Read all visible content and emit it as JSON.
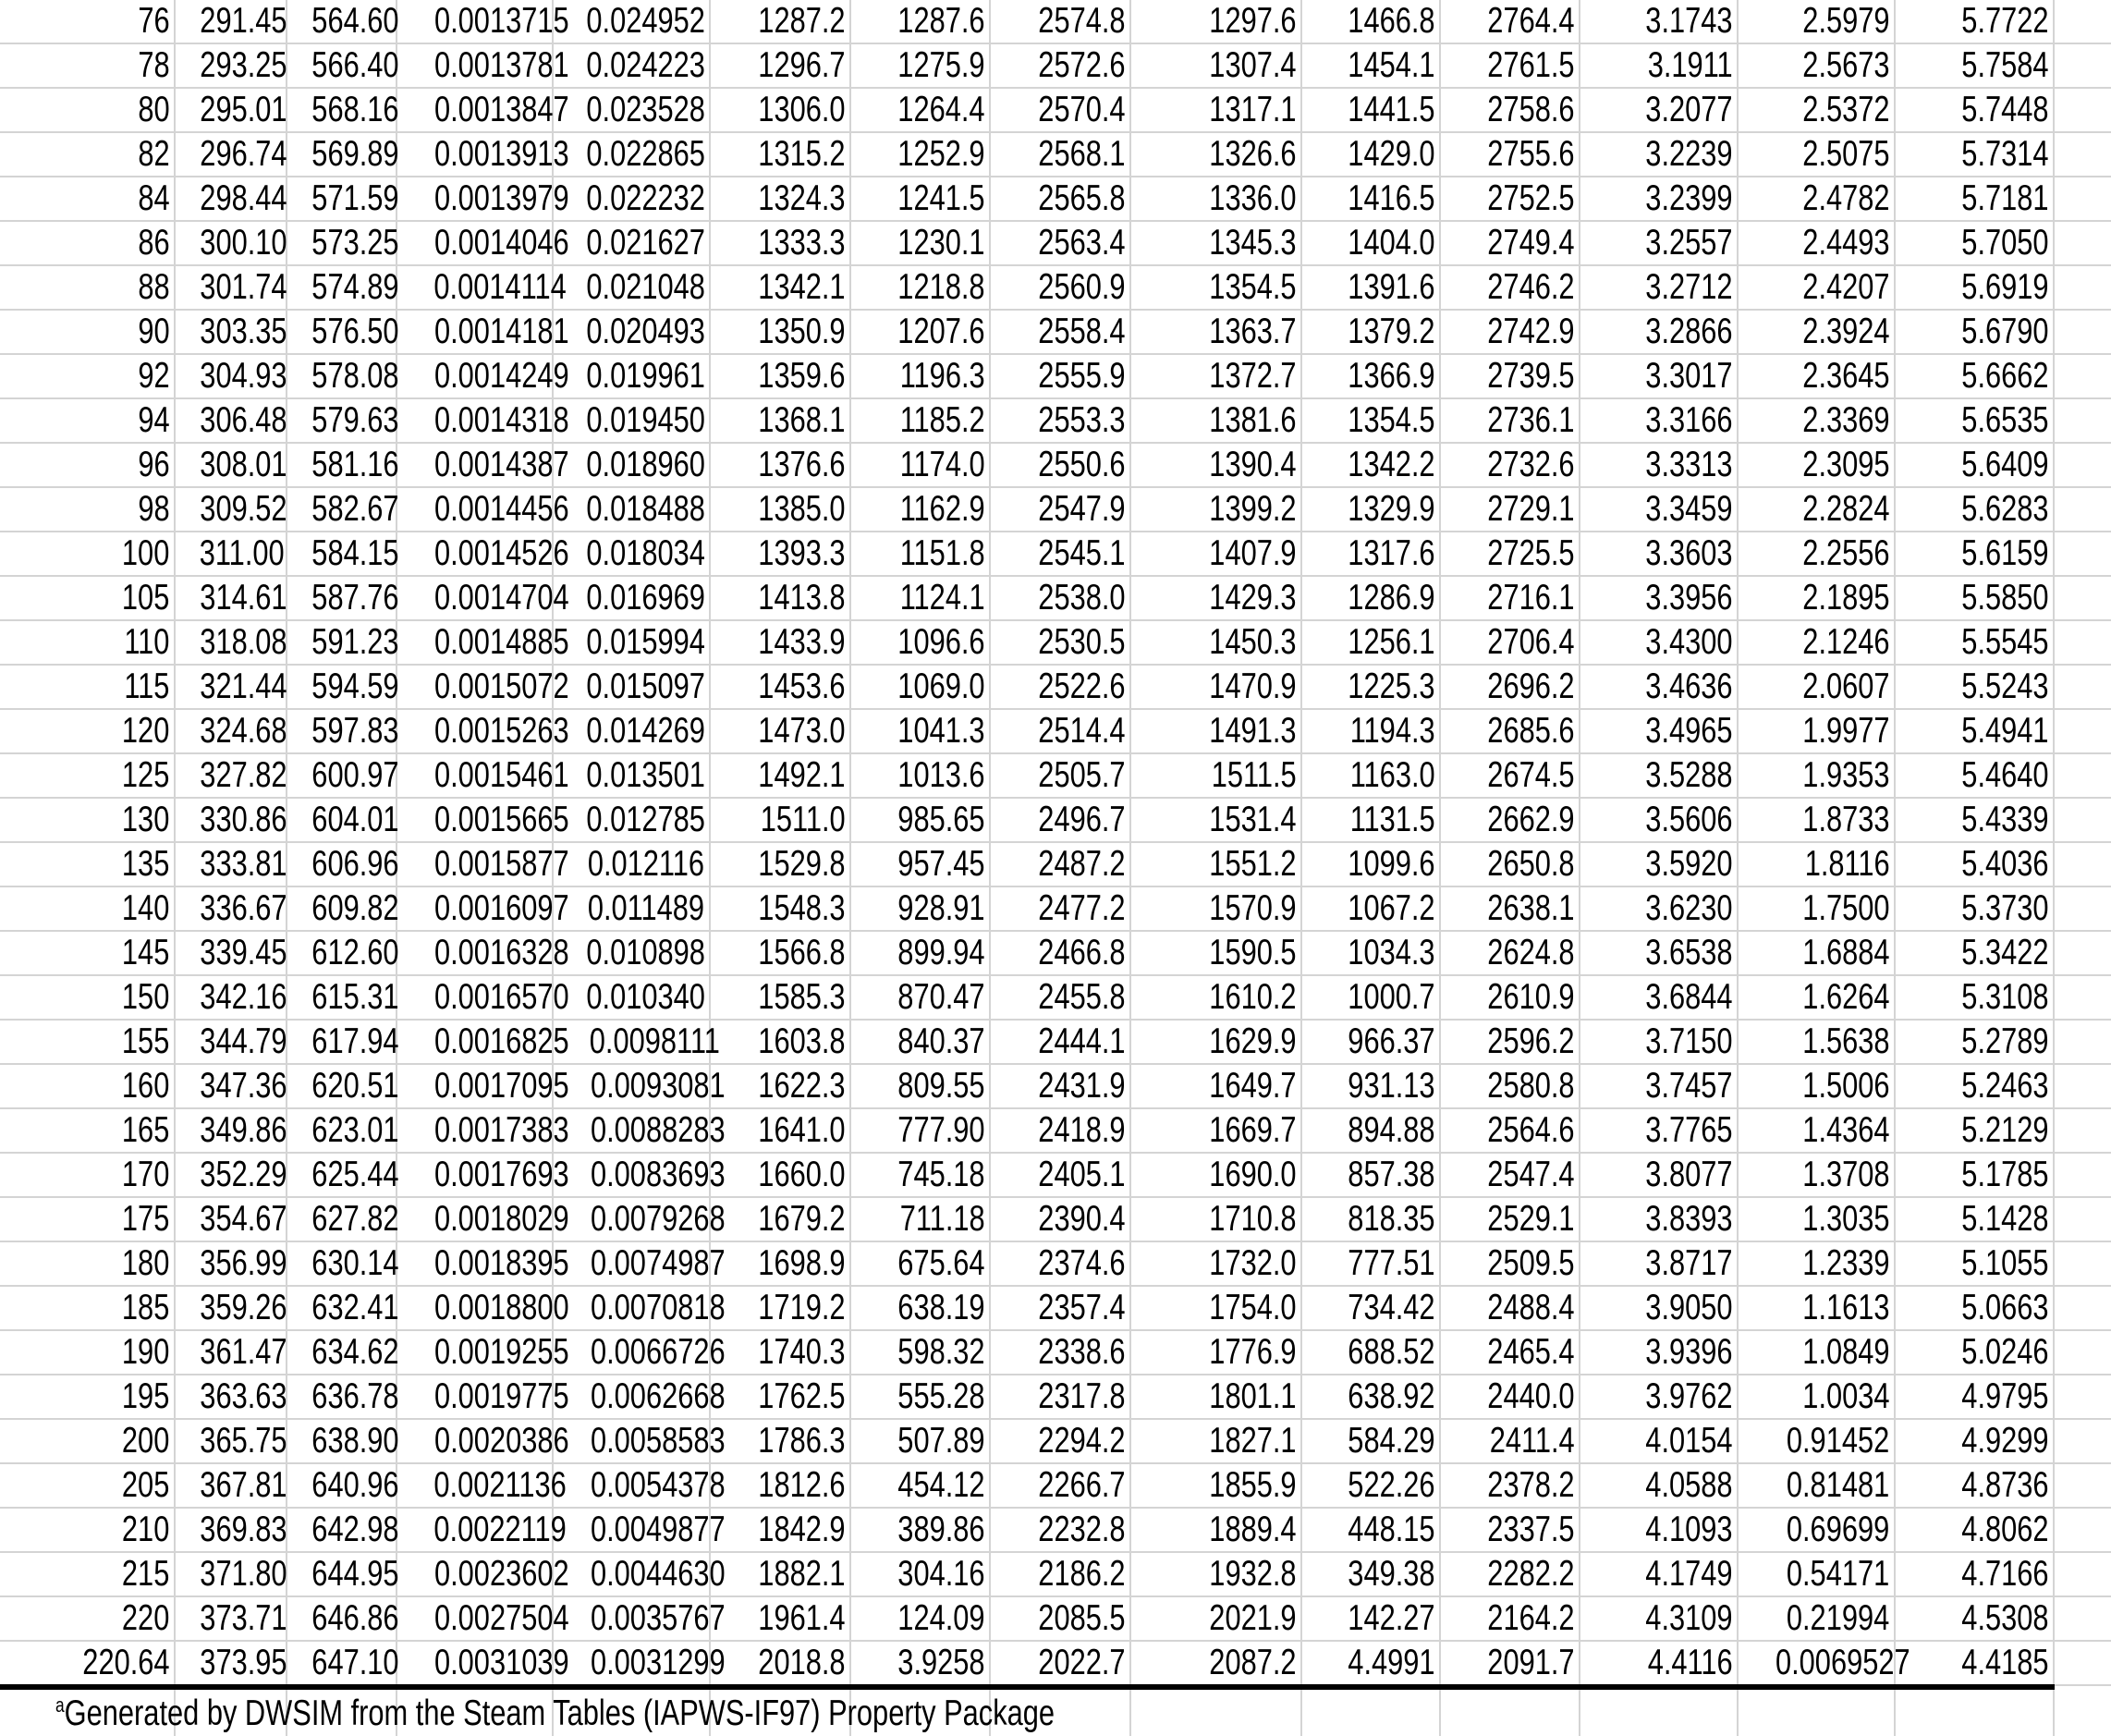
{
  "table": {
    "rows": [
      [
        "76",
        "291.45",
        "564.60",
        "0.0013715",
        "0.024952",
        "1287.2",
        "1287.6",
        "2574.8",
        "1297.6",
        "1466.8",
        "2764.4",
        "3.1743",
        "2.5979",
        "5.7722"
      ],
      [
        "78",
        "293.25",
        "566.40",
        "0.0013781",
        "0.024223",
        "1296.7",
        "1275.9",
        "2572.6",
        "1307.4",
        "1454.1",
        "2761.5",
        "3.1911",
        "2.5673",
        "5.7584"
      ],
      [
        "80",
        "295.01",
        "568.16",
        "0.0013847",
        "0.023528",
        "1306.0",
        "1264.4",
        "2570.4",
        "1317.1",
        "1441.5",
        "2758.6",
        "3.2077",
        "2.5372",
        "5.7448"
      ],
      [
        "82",
        "296.74",
        "569.89",
        "0.0013913",
        "0.022865",
        "1315.2",
        "1252.9",
        "2568.1",
        "1326.6",
        "1429.0",
        "2755.6",
        "3.2239",
        "2.5075",
        "5.7314"
      ],
      [
        "84",
        "298.44",
        "571.59",
        "0.0013979",
        "0.022232",
        "1324.3",
        "1241.5",
        "2565.8",
        "1336.0",
        "1416.5",
        "2752.5",
        "3.2399",
        "2.4782",
        "5.7181"
      ],
      [
        "86",
        "300.10",
        "573.25",
        "0.0014046",
        "0.021627",
        "1333.3",
        "1230.1",
        "2563.4",
        "1345.3",
        "1404.0",
        "2749.4",
        "3.2557",
        "2.4493",
        "5.7050"
      ],
      [
        "88",
        "301.74",
        "574.89",
        "0.0014114",
        "0.021048",
        "1342.1",
        "1218.8",
        "2560.9",
        "1354.5",
        "1391.6",
        "2746.2",
        "3.2712",
        "2.4207",
        "5.6919"
      ],
      [
        "90",
        "303.35",
        "576.50",
        "0.0014181",
        "0.020493",
        "1350.9",
        "1207.6",
        "2558.4",
        "1363.7",
        "1379.2",
        "2742.9",
        "3.2866",
        "2.3924",
        "5.6790"
      ],
      [
        "92",
        "304.93",
        "578.08",
        "0.0014249",
        "0.019961",
        "1359.6",
        "1196.3",
        "2555.9",
        "1372.7",
        "1366.9",
        "2739.5",
        "3.3017",
        "2.3645",
        "5.6662"
      ],
      [
        "94",
        "306.48",
        "579.63",
        "0.0014318",
        "0.019450",
        "1368.1",
        "1185.2",
        "2553.3",
        "1381.6",
        "1354.5",
        "2736.1",
        "3.3166",
        "2.3369",
        "5.6535"
      ],
      [
        "96",
        "308.01",
        "581.16",
        "0.0014387",
        "0.018960",
        "1376.6",
        "1174.0",
        "2550.6",
        "1390.4",
        "1342.2",
        "2732.6",
        "3.3313",
        "2.3095",
        "5.6409"
      ],
      [
        "98",
        "309.52",
        "582.67",
        "0.0014456",
        "0.018488",
        "1385.0",
        "1162.9",
        "2547.9",
        "1399.2",
        "1329.9",
        "2729.1",
        "3.3459",
        "2.2824",
        "5.6283"
      ],
      [
        "100",
        "311.00",
        "584.15",
        "0.0014526",
        "0.018034",
        "1393.3",
        "1151.8",
        "2545.1",
        "1407.9",
        "1317.6",
        "2725.5",
        "3.3603",
        "2.2556",
        "5.6159"
      ],
      [
        "105",
        "314.61",
        "587.76",
        "0.0014704",
        "0.016969",
        "1413.8",
        "1124.1",
        "2538.0",
        "1429.3",
        "1286.9",
        "2716.1",
        "3.3956",
        "2.1895",
        "5.5850"
      ],
      [
        "110",
        "318.08",
        "591.23",
        "0.0014885",
        "0.015994",
        "1433.9",
        "1096.6",
        "2530.5",
        "1450.3",
        "1256.1",
        "2706.4",
        "3.4300",
        "2.1246",
        "5.5545"
      ],
      [
        "115",
        "321.44",
        "594.59",
        "0.0015072",
        "0.015097",
        "1453.6",
        "1069.0",
        "2522.6",
        "1470.9",
        "1225.3",
        "2696.2",
        "3.4636",
        "2.0607",
        "5.5243"
      ],
      [
        "120",
        "324.68",
        "597.83",
        "0.0015263",
        "0.014269",
        "1473.0",
        "1041.3",
        "2514.4",
        "1491.3",
        "1194.3",
        "2685.6",
        "3.4965",
        "1.9977",
        "5.4941"
      ],
      [
        "125",
        "327.82",
        "600.97",
        "0.0015461",
        "0.013501",
        "1492.1",
        "1013.6",
        "2505.7",
        "1511.5",
        "1163.0",
        "2674.5",
        "3.5288",
        "1.9353",
        "5.4640"
      ],
      [
        "130",
        "330.86",
        "604.01",
        "0.0015665",
        "0.012785",
        "1511.0",
        "985.65",
        "2496.7",
        "1531.4",
        "1131.5",
        "2662.9",
        "3.5606",
        "1.8733",
        "5.4339"
      ],
      [
        "135",
        "333.81",
        "606.96",
        "0.0015877",
        "0.012116",
        "1529.8",
        "957.45",
        "2487.2",
        "1551.2",
        "1099.6",
        "2650.8",
        "3.5920",
        "1.8116",
        "5.4036"
      ],
      [
        "140",
        "336.67",
        "609.82",
        "0.0016097",
        "0.011489",
        "1548.3",
        "928.91",
        "2477.2",
        "1570.9",
        "1067.2",
        "2638.1",
        "3.6230",
        "1.7500",
        "5.3730"
      ],
      [
        "145",
        "339.45",
        "612.60",
        "0.0016328",
        "0.010898",
        "1566.8",
        "899.94",
        "2466.8",
        "1590.5",
        "1034.3",
        "2624.8",
        "3.6538",
        "1.6884",
        "5.3422"
      ],
      [
        "150",
        "342.16",
        "615.31",
        "0.0016570",
        "0.010340",
        "1585.3",
        "870.47",
        "2455.8",
        "1610.2",
        "1000.7",
        "2610.9",
        "3.6844",
        "1.6264",
        "5.3108"
      ],
      [
        "155",
        "344.79",
        "617.94",
        "0.0016825",
        "0.0098111",
        "1603.8",
        "840.37",
        "2444.1",
        "1629.9",
        "966.37",
        "2596.2",
        "3.7150",
        "1.5638",
        "5.2789"
      ],
      [
        "160",
        "347.36",
        "620.51",
        "0.0017095",
        "0.0093081",
        "1622.3",
        "809.55",
        "2431.9",
        "1649.7",
        "931.13",
        "2580.8",
        "3.7457",
        "1.5006",
        "5.2463"
      ],
      [
        "165",
        "349.86",
        "623.01",
        "0.0017383",
        "0.0088283",
        "1641.0",
        "777.90",
        "2418.9",
        "1669.7",
        "894.88",
        "2564.6",
        "3.7765",
        "1.4364",
        "5.2129"
      ],
      [
        "170",
        "352.29",
        "625.44",
        "0.0017693",
        "0.0083693",
        "1660.0",
        "745.18",
        "2405.1",
        "1690.0",
        "857.38",
        "2547.4",
        "3.8077",
        "1.3708",
        "5.1785"
      ],
      [
        "175",
        "354.67",
        "627.82",
        "0.0018029",
        "0.0079268",
        "1679.2",
        "711.18",
        "2390.4",
        "1710.8",
        "818.35",
        "2529.1",
        "3.8393",
        "1.3035",
        "5.1428"
      ],
      [
        "180",
        "356.99",
        "630.14",
        "0.0018395",
        "0.0074987",
        "1698.9",
        "675.64",
        "2374.6",
        "1732.0",
        "777.51",
        "2509.5",
        "3.8717",
        "1.2339",
        "5.1055"
      ],
      [
        "185",
        "359.26",
        "632.41",
        "0.0018800",
        "0.0070818",
        "1719.2",
        "638.19",
        "2357.4",
        "1754.0",
        "734.42",
        "2488.4",
        "3.9050",
        "1.1613",
        "5.0663"
      ],
      [
        "190",
        "361.47",
        "634.62",
        "0.0019255",
        "0.0066726",
        "1740.3",
        "598.32",
        "2338.6",
        "1776.9",
        "688.52",
        "2465.4",
        "3.9396",
        "1.0849",
        "5.0246"
      ],
      [
        "195",
        "363.63",
        "636.78",
        "0.0019775",
        "0.0062668",
        "1762.5",
        "555.28",
        "2317.8",
        "1801.1",
        "638.92",
        "2440.0",
        "3.9762",
        "1.0034",
        "4.9795"
      ],
      [
        "200",
        "365.75",
        "638.90",
        "0.0020386",
        "0.0058583",
        "1786.3",
        "507.89",
        "2294.2",
        "1827.1",
        "584.29",
        "2411.4",
        "4.0154",
        "0.91452",
        "4.9299"
      ],
      [
        "205",
        "367.81",
        "640.96",
        "0.0021136",
        "0.0054378",
        "1812.6",
        "454.12",
        "2266.7",
        "1855.9",
        "522.26",
        "2378.2",
        "4.0588",
        "0.81481",
        "4.8736"
      ],
      [
        "210",
        "369.83",
        "642.98",
        "0.0022119",
        "0.0049877",
        "1842.9",
        "389.86",
        "2232.8",
        "1889.4",
        "448.15",
        "2337.5",
        "4.1093",
        "0.69699",
        "4.8062"
      ],
      [
        "215",
        "371.80",
        "644.95",
        "0.0023602",
        "0.0044630",
        "1882.1",
        "304.16",
        "2186.2",
        "1932.8",
        "349.38",
        "2282.2",
        "4.1749",
        "0.54171",
        "4.7166"
      ],
      [
        "220",
        "373.71",
        "646.86",
        "0.0027504",
        "0.0035767",
        "1961.4",
        "124.09",
        "2085.5",
        "2021.9",
        "142.27",
        "2164.2",
        "4.3109",
        "0.21994",
        "4.5308"
      ],
      [
        "220.64",
        "373.95",
        "647.10",
        "0.0031039",
        "0.0031299",
        "2018.8",
        "3.9258",
        "2022.7",
        "2087.2",
        "4.4991",
        "2091.7",
        "4.4116",
        "0.0069527",
        "4.4185"
      ]
    ]
  },
  "footnote": {
    "marker": "a",
    "text": "Generated by DWSIM from the Steam Tables (IAPWS-IF97) Property Package"
  },
  "colors": {
    "gridline": "#d4d4d4",
    "text": "#000000",
    "rule": "#000000"
  }
}
